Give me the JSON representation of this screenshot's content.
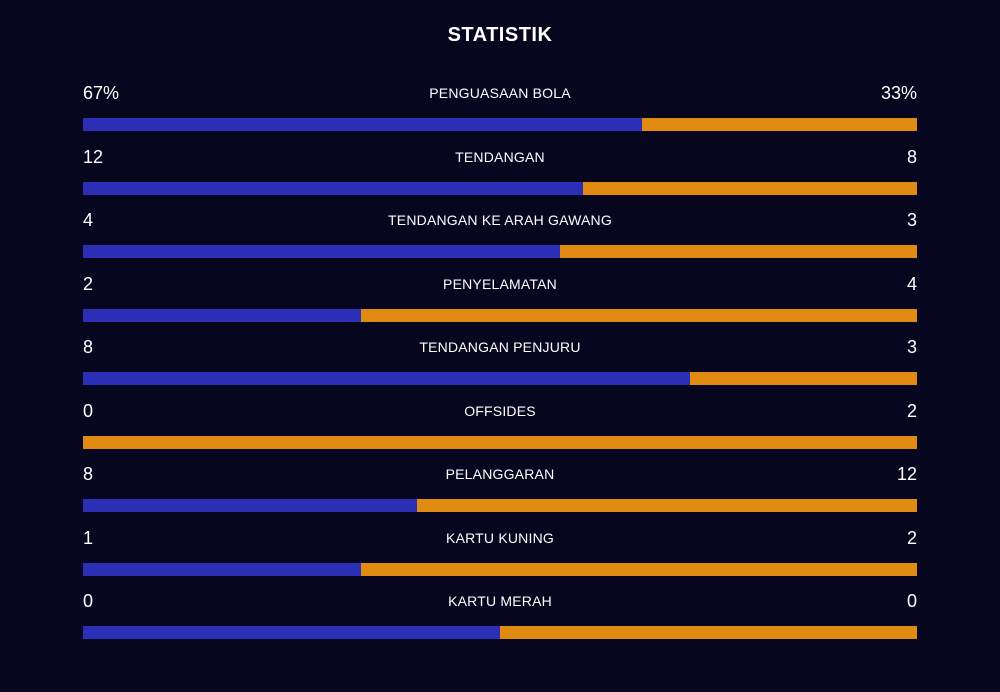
{
  "header": {
    "title": "STATISTIK"
  },
  "colors": {
    "background": "#07061f",
    "home": "#2a2fb6",
    "away": "#e08a12"
  },
  "chart_data": {
    "type": "bar",
    "title": "STATISTIK",
    "categories": [
      "PENGUASAAN BOLA",
      "TENDANGAN",
      "TENDANGAN KE ARAH GAWANG",
      "PENYELAMATAN",
      "TENDANGAN PENJURU",
      "OFFSIDES",
      "PELANGGARAN",
      "KARTU KUNING",
      "KARTU MERAH"
    ],
    "home_labels": [
      "67%",
      "12",
      "4",
      "2",
      "8",
      "0",
      "8",
      "1",
      "0"
    ],
    "away_labels": [
      "33%",
      "8",
      "3",
      "4",
      "3",
      "2",
      "12",
      "2",
      "0"
    ],
    "series": [
      {
        "values": [
          67,
          12,
          4,
          2,
          8,
          0,
          8,
          1,
          0
        ]
      },
      {
        "values": [
          33,
          8,
          3,
          4,
          3,
          2,
          12,
          2,
          0
        ]
      }
    ]
  }
}
